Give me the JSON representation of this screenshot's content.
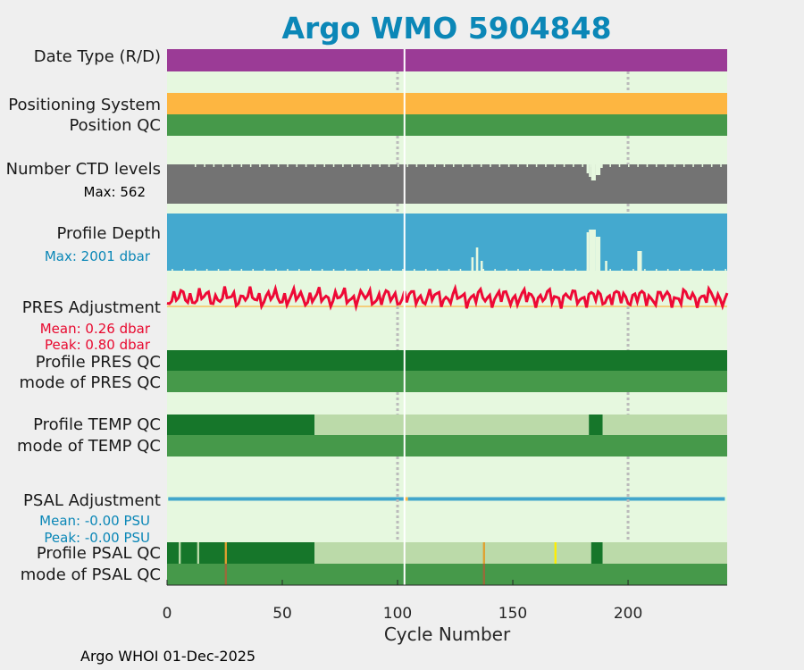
{
  "title": "Argo WMO 5904848",
  "footer": "Argo WHOI 01-Dec-2025",
  "colors": {
    "bg_plot": "#e6f8df",
    "date_type": "#9b3b96",
    "positioning": "#fdb641",
    "qc_green": "#46994a",
    "qc_dark": "#16762a",
    "qc_light": "#bbdaa9",
    "ctd": "#737373",
    "depth": "#44a9cf",
    "pres_line": "#ee0935",
    "psal_line": "#41a6cb",
    "cyan_text": "#0b87b7",
    "red_text": "#e8092f"
  },
  "chart_data": {
    "type": "bar",
    "xlabel": "Cycle Number",
    "xlim": [
      0,
      243
    ],
    "xticks": [
      0,
      50,
      100,
      150,
      200
    ],
    "vline_solid": 103,
    "vlines_dotted": [
      100,
      200
    ],
    "rows": {
      "date_type": {
        "label": "Date Type (R/D)"
      },
      "positioning": {
        "label": "Positioning System"
      },
      "position_qc": {
        "label": "Position QC"
      },
      "ctd_levels": {
        "label": "Number CTD levels",
        "annotation": "Max: 562",
        "max": 562
      },
      "profile_depth": {
        "label": "Profile Depth",
        "annotation": "Max: 2001 dbar",
        "max": 2001
      },
      "pres_adjustment": {
        "label": "PRES Adjustment",
        "mean": "Mean: 0.26 dbar",
        "peak": "Peak: 0.80 dbar"
      },
      "profile_pres_qc": {
        "label": "Profile PRES QC"
      },
      "mode_pres_qc": {
        "label": "mode of PRES QC"
      },
      "profile_temp_qc": {
        "label": "Profile TEMP QC",
        "segments": [
          {
            "from": 0,
            "to": 64,
            "grade": "A"
          },
          {
            "from": 64,
            "to": 183,
            "grade": "F"
          },
          {
            "from": 183,
            "to": 189,
            "grade": "A"
          },
          {
            "from": 189,
            "to": 243,
            "grade": "F"
          }
        ]
      },
      "mode_temp_qc": {
        "label": "mode of TEMP QC"
      },
      "psal_adjustment": {
        "label": "PSAL Adjustment",
        "mean": "Mean: -0.00 PSU",
        "peak": "Peak: -0.00 PSU"
      },
      "profile_psal_qc": {
        "label": "Profile PSAL QC",
        "segments": [
          {
            "from": 0,
            "to": 64,
            "grade": "A"
          },
          {
            "from": 64,
            "to": 184,
            "grade": "F"
          },
          {
            "from": 184,
            "to": 189,
            "grade": "A"
          },
          {
            "from": 189,
            "to": 243,
            "grade": "F"
          }
        ],
        "marks": [
          {
            "x": 5.5,
            "color": "#bbdaa9"
          },
          {
            "x": 13.5,
            "color": "#bbdaa9"
          },
          {
            "x": 25.5,
            "color": "#e0a030"
          },
          {
            "x": 137.5,
            "color": "#e0a030"
          },
          {
            "x": 168.5,
            "color": "#ffee00"
          }
        ]
      },
      "mode_psal_qc": {
        "label": "mode of PSAL QC",
        "marks": [
          {
            "x": 25.5,
            "color": "#9a6a3a"
          },
          {
            "x": 137.5,
            "color": "#9a6a3a"
          }
        ]
      }
    }
  }
}
